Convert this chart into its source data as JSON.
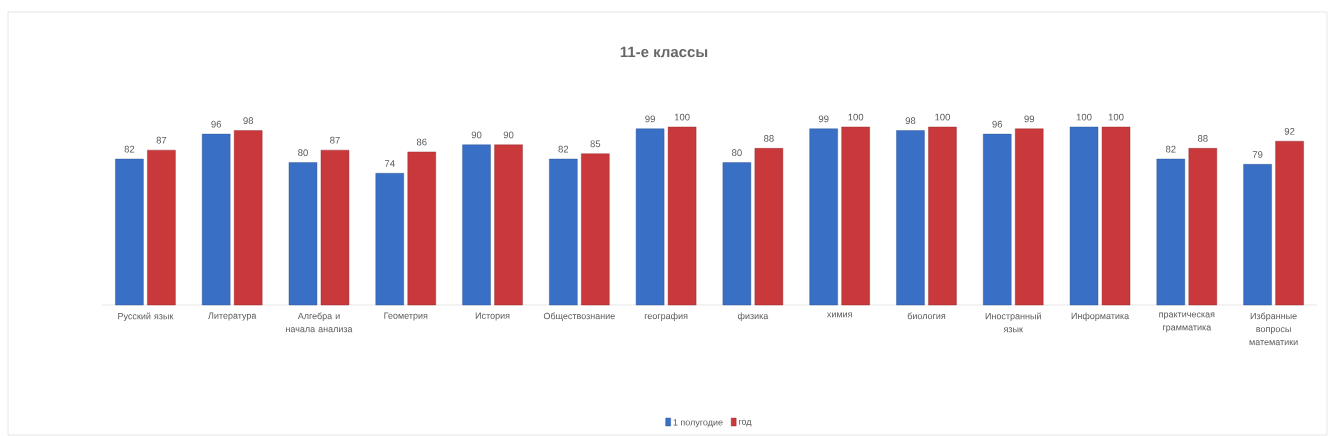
{
  "chart_data": {
    "type": "bar",
    "title": "11-е классы",
    "categories": [
      "Русский язык",
      "Литература",
      "Алгебра и начала анализа",
      "Геометрия",
      "История",
      "Обществознание",
      "география",
      "физика",
      "химия",
      "биология",
      "Иностранный язык",
      "Информатика",
      "практическая грамматика",
      "Избранные вопросы математики"
    ],
    "series": [
      {
        "name": "1 полугодие",
        "color": "#3a6fc6",
        "values": [
          82,
          96,
          80,
          74,
          90,
          82,
          99,
          80,
          99,
          98,
          96,
          100,
          82,
          79
        ]
      },
      {
        "name": "год",
        "color": "#c9383a",
        "values": [
          87,
          98,
          87,
          86,
          90,
          85,
          100,
          88,
          100,
          100,
          99,
          100,
          88,
          92
        ]
      }
    ],
    "data_labels": true,
    "legend": "bottom"
  }
}
